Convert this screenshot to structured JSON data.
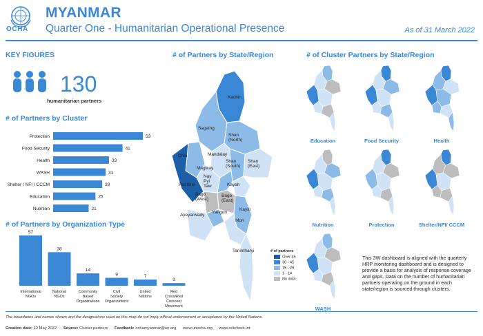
{
  "header": {
    "org": "OCHA",
    "country": "MYANMAR",
    "subtitle": "Quarter One - Humanitarian Operational Presence",
    "as_of": "As of 31 March 2022"
  },
  "key_figures": {
    "title": "KEY FIGURES",
    "partners": "130",
    "partners_label": "humanitarian partners"
  },
  "sections": {
    "by_cluster": "# of Partners by Cluster",
    "by_org_type": "# of Partners by Organization Type",
    "by_state": "# of Partners by State/Region",
    "cluster_by_state": "# of Cluster Partners by State/Region"
  },
  "map": {
    "labels": [
      "Kachin",
      "Sagaing",
      "Shan (North)",
      "Chin",
      "Mandalay",
      "Shan (South)",
      "Shan (East)",
      "Magway",
      "Nay Pyi Taw",
      "Rakhine",
      "Kayah",
      "Bago (West)",
      "Bago (East)",
      "Kayin",
      "Yangon",
      "Ayeyarwady",
      "Mon",
      "Tanintharyi"
    ],
    "legend_title": "# of partners",
    "legend": [
      {
        "label": "Over 45",
        "color": "#1c5fa8"
      },
      {
        "label": "30 - 45",
        "color": "#3a87d6"
      },
      {
        "label": "15 - 29",
        "color": "#8cbbe8"
      },
      {
        "label": "1 - 14",
        "color": "#cfe2f6"
      },
      {
        "label": "No data",
        "color": "#bdbdbd"
      }
    ]
  },
  "cluster_maps": [
    "Education",
    "Food Security",
    "Health",
    "Nutrition",
    "Protection",
    "Shelter/NFI/ CCCM",
    "WASH"
  ],
  "note": "This 3W dashboard is aligned with the quarterly HRP monitoring dashboard and is designed to provide a basis for analysis of response coverage and gaps. Data on the number of humanitarian partners operating on the ground in each state/region is sourced through clusters.",
  "footer": {
    "disclaimer": "The boundaries and names shown and the designations used on this map do not imply official endorsement or acceptance by the United Nations.",
    "creation_label": "Creation date:",
    "creation_date": "12 May 2022",
    "sources_label": "Source:",
    "sources": "Cluster partners",
    "feedback_label": "Feedback:",
    "feedback": "ochamyanmar@un.org",
    "web1": "www.unocha.org",
    "web2": "www.reliefweb.int"
  },
  "chart_data": [
    {
      "type": "bar",
      "orientation": "horizontal",
      "title": "# of Partners by Cluster",
      "categories": [
        "Protection",
        "Food Security",
        "Health",
        "WASH",
        "Shelter / NFI / CCCM",
        "Education",
        "Nutrition"
      ],
      "values": [
        53,
        41,
        33,
        31,
        29,
        25,
        21
      ],
      "color": "#3a87d6"
    },
    {
      "type": "bar",
      "orientation": "vertical",
      "title": "# of Partners by Organization Type",
      "categories": [
        "International NGOs",
        "National NGOs",
        "Community Based Organizations",
        "Civil Society Organizations",
        "United Nations",
        "Red Cross/Red Crescent Movement"
      ],
      "values": [
        57,
        38,
        14,
        9,
        7,
        3
      ],
      "color": "#3a87d6"
    }
  ]
}
